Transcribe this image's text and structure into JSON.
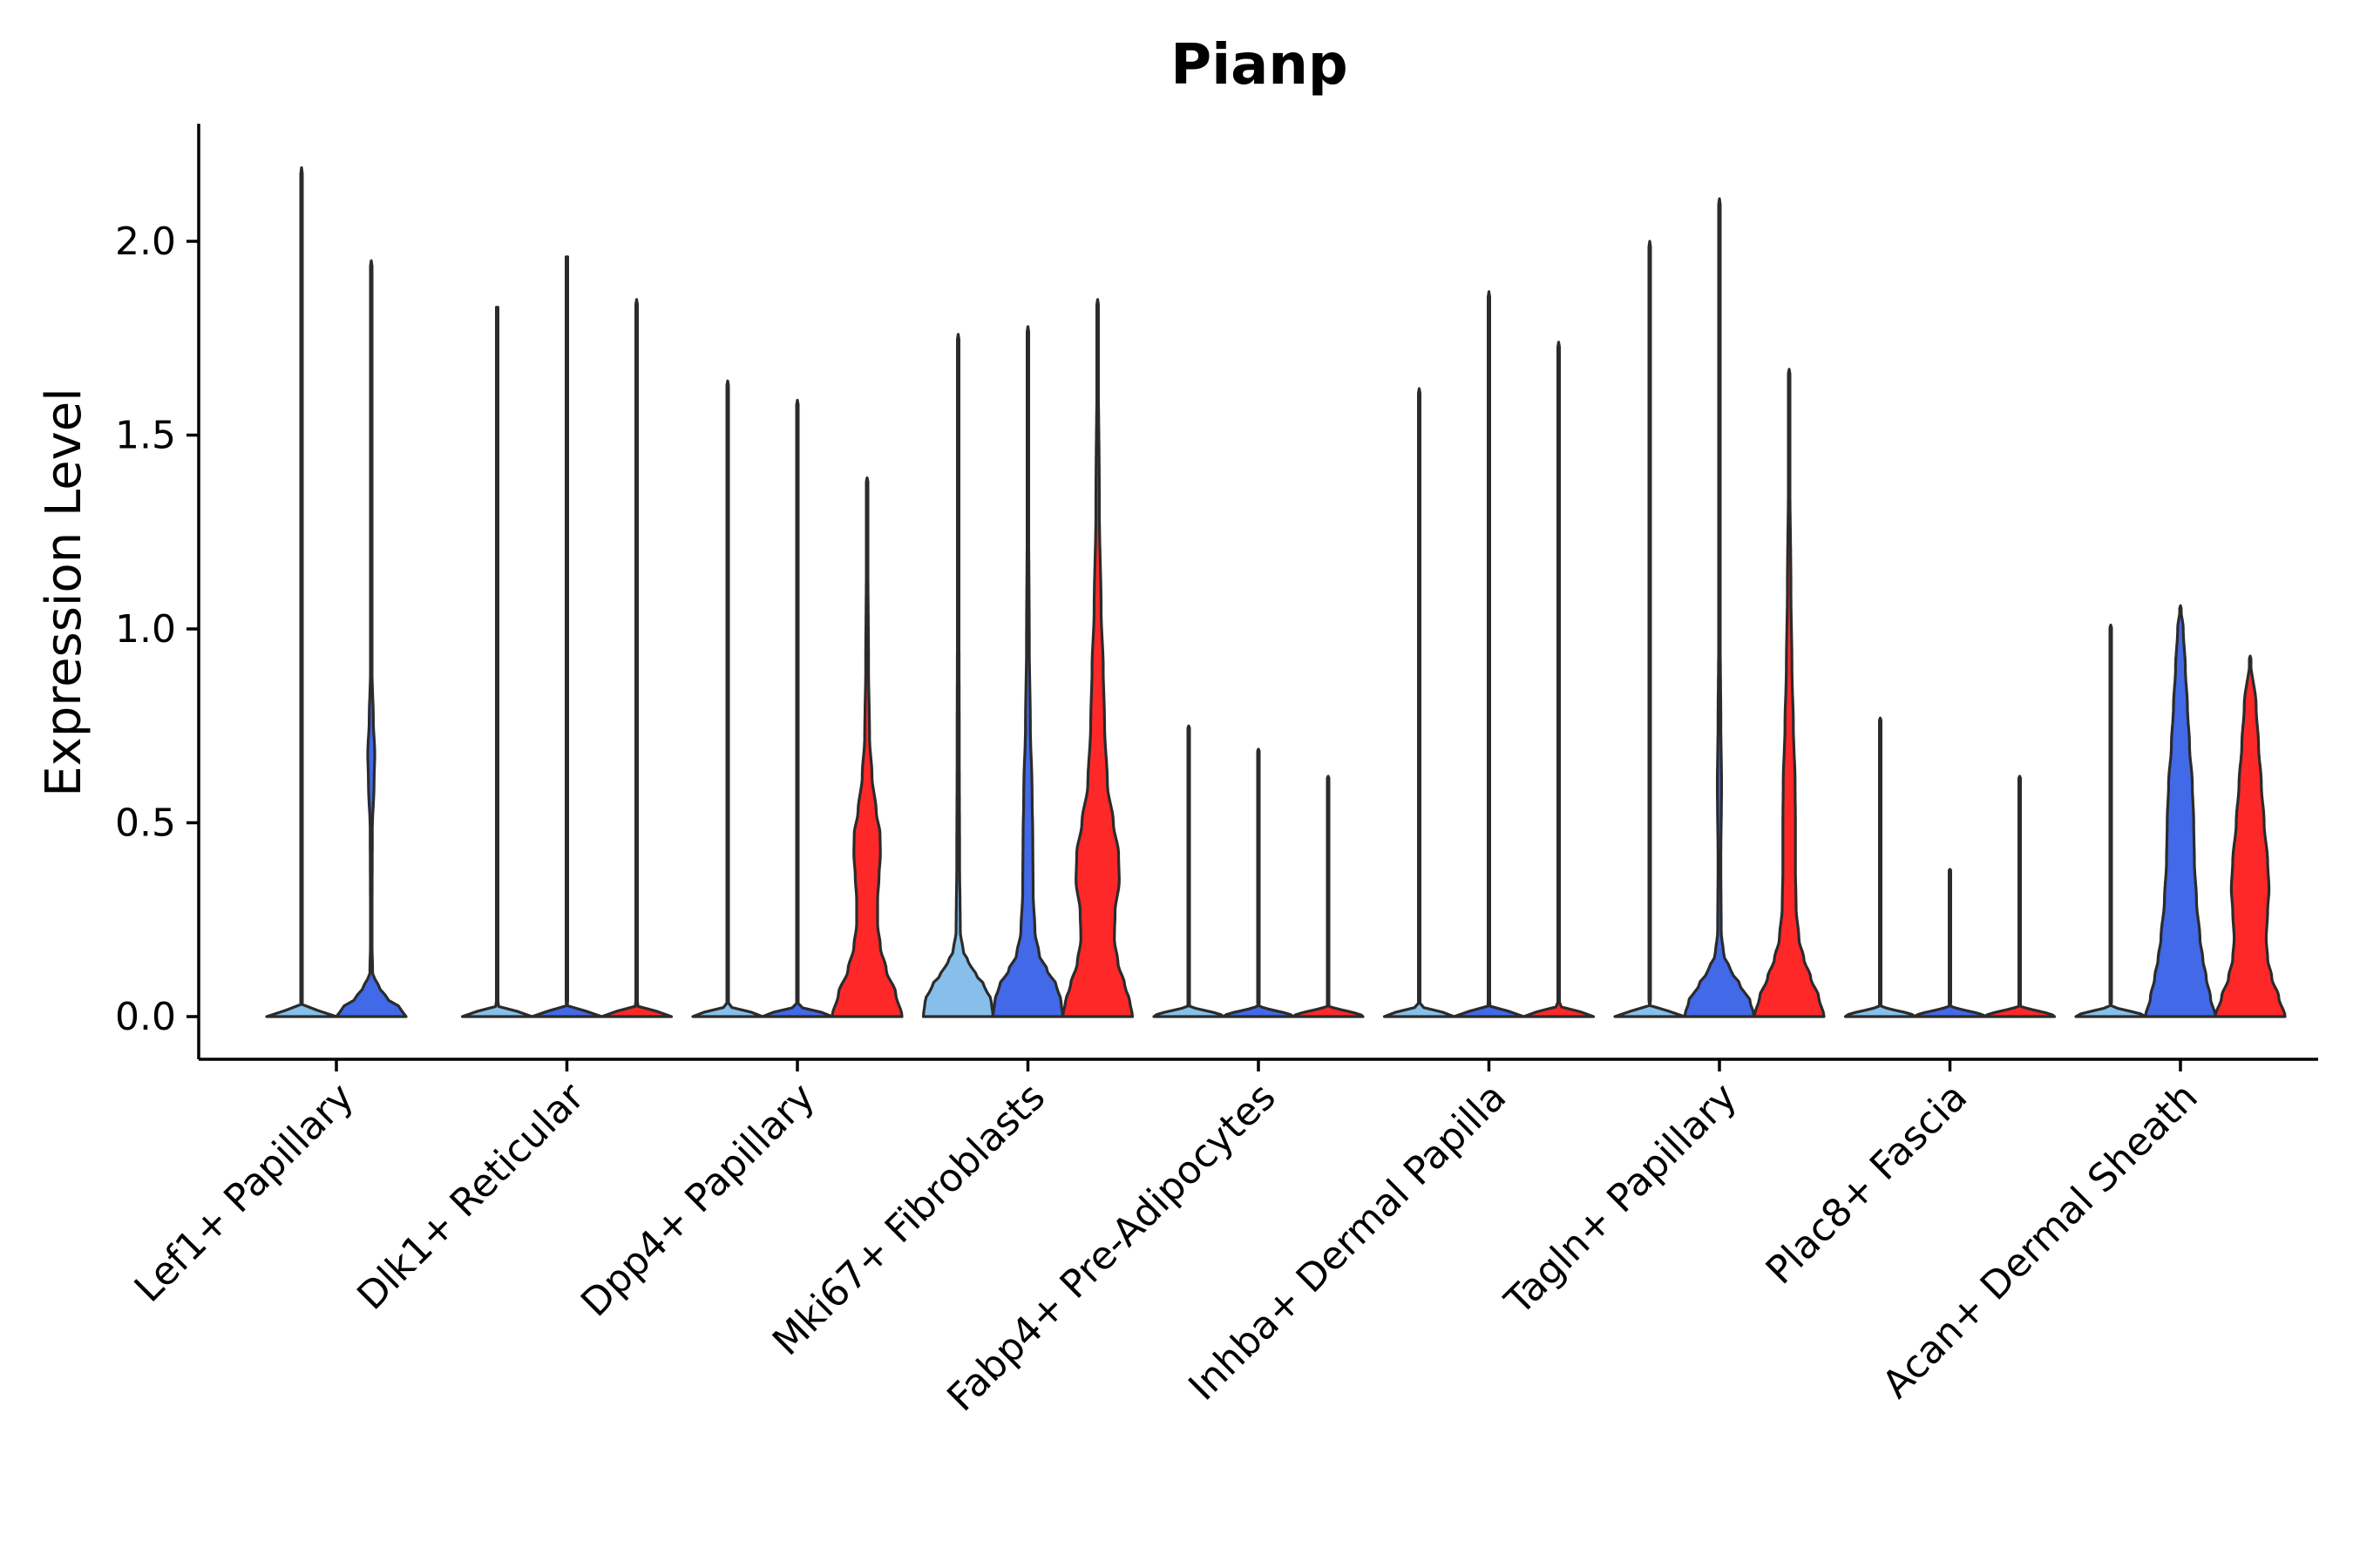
{
  "chart_data": {
    "type": "violin",
    "title": "Pianp",
    "xlabel": "",
    "ylabel": "Expression Level",
    "ylim": [
      -0.11,
      2.3
    ],
    "yticks": [
      0.0,
      0.5,
      1.0,
      1.5,
      2.0
    ],
    "ytick_labels": [
      "0.0",
      "0.5",
      "1.0",
      "1.5",
      "2.0"
    ],
    "grid": false,
    "legend": "none",
    "series_colors": {
      "group1": "#86bfe9",
      "group2": "#4169e8",
      "group3": "#ff2828"
    },
    "categories": [
      {
        "label": "Lef1+ Papillary",
        "violins": [
          {
            "group": "group1",
            "max": 2.19,
            "profile": [
              [
                0,
                1.0
              ],
              [
                0.03,
                0
              ]
            ]
          },
          {
            "group": "group2",
            "max": 1.95,
            "profile": [
              [
                0,
                1.0
              ],
              [
                0.02,
                0.85
              ],
              [
                0.05,
                0.42
              ],
              [
                0.08,
                0.2
              ],
              [
                0.11,
                0.04
              ],
              [
                0.2,
                0.02
              ],
              [
                0.48,
                0.03
              ],
              [
                0.6,
                0.08
              ],
              [
                0.68,
                0.1
              ],
              [
                0.76,
                0.06
              ],
              [
                0.9,
                0.02
              ],
              [
                1.4,
                0.01
              ],
              [
                1.95,
                0
              ]
            ]
          }
        ]
      },
      {
        "label": "Dlk1+ Reticular",
        "violins": [
          {
            "group": "group1",
            "max": 1.83,
            "profile": [
              [
                0,
                1.0
              ],
              [
                0.03,
                0
              ]
            ]
          },
          {
            "group": "group2",
            "max": 1.96,
            "profile": [
              [
                0,
                1.0
              ],
              [
                0.03,
                0
              ]
            ]
          },
          {
            "group": "group3",
            "max": 1.85,
            "profile": [
              [
                0,
                1.0
              ],
              [
                0.03,
                0
              ]
            ]
          }
        ]
      },
      {
        "label": "Dpp4+ Papillary",
        "violins": [
          {
            "group": "group1",
            "max": 1.64,
            "profile": [
              [
                0,
                1.0
              ],
              [
                0.03,
                0
              ]
            ]
          },
          {
            "group": "group2",
            "max": 1.59,
            "profile": [
              [
                0,
                1.0
              ],
              [
                0.03,
                0
              ]
            ]
          },
          {
            "group": "group3",
            "max": 1.39,
            "profile": [
              [
                0,
                1.0
              ],
              [
                0.06,
                0.82
              ],
              [
                0.12,
                0.55
              ],
              [
                0.18,
                0.38
              ],
              [
                0.24,
                0.3
              ],
              [
                0.3,
                0.3
              ],
              [
                0.36,
                0.34
              ],
              [
                0.42,
                0.38
              ],
              [
                0.47,
                0.37
              ],
              [
                0.53,
                0.26
              ],
              [
                0.62,
                0.14
              ],
              [
                0.72,
                0.07
              ],
              [
                0.9,
                0.04
              ],
              [
                1.2,
                0.02
              ],
              [
                1.39,
                0
              ]
            ]
          }
        ]
      },
      {
        "label": "Mki67+ Fibroblasts",
        "violins": [
          {
            "group": "group1",
            "max": 1.76,
            "profile": [
              [
                0,
                1.0
              ],
              [
                0.04,
                0.95
              ],
              [
                0.08,
                0.75
              ],
              [
                0.11,
                0.5
              ],
              [
                0.14,
                0.3
              ],
              [
                0.17,
                0.14
              ],
              [
                0.22,
                0.06
              ],
              [
                0.4,
                0.04
              ],
              [
                0.7,
                0.03
              ],
              [
                1.1,
                0.02
              ],
              [
                1.76,
                0
              ]
            ]
          },
          {
            "group": "group2",
            "max": 1.78,
            "profile": [
              [
                0,
                1.0
              ],
              [
                0.04,
                0.95
              ],
              [
                0.08,
                0.82
              ],
              [
                0.12,
                0.55
              ],
              [
                0.16,
                0.32
              ],
              [
                0.22,
                0.2
              ],
              [
                0.32,
                0.15
              ],
              [
                0.45,
                0.14
              ],
              [
                0.58,
                0.12
              ],
              [
                0.75,
                0.07
              ],
              [
                0.95,
                0.04
              ],
              [
                1.3,
                0.02
              ],
              [
                1.78,
                0
              ]
            ]
          },
          {
            "group": "group3",
            "max": 1.85,
            "profile": [
              [
                0,
                1.0
              ],
              [
                0.04,
                0.92
              ],
              [
                0.08,
                0.78
              ],
              [
                0.14,
                0.58
              ],
              [
                0.2,
                0.48
              ],
              [
                0.27,
                0.5
              ],
              [
                0.35,
                0.62
              ],
              [
                0.42,
                0.6
              ],
              [
                0.5,
                0.45
              ],
              [
                0.6,
                0.28
              ],
              [
                0.75,
                0.2
              ],
              [
                0.9,
                0.16
              ],
              [
                1.05,
                0.1
              ],
              [
                1.3,
                0.05
              ],
              [
                1.85,
                0
              ]
            ]
          }
        ]
      },
      {
        "label": "Fabp4+ Pre-Adipocytes",
        "violins": [
          {
            "group": "group1",
            "max": 0.75,
            "profile": [
              [
                0,
                1.0
              ],
              [
                0.03,
                0
              ]
            ]
          },
          {
            "group": "group2",
            "max": 0.69,
            "profile": [
              [
                0,
                1.0
              ],
              [
                0.03,
                0
              ]
            ]
          },
          {
            "group": "group3",
            "max": 0.62,
            "profile": [
              [
                0,
                1.0
              ],
              [
                0.03,
                0
              ]
            ]
          }
        ]
      },
      {
        "label": "Inhba+ Dermal Papilla",
        "violins": [
          {
            "group": "group1",
            "max": 1.62,
            "profile": [
              [
                0,
                1.0
              ],
              [
                0.03,
                0
              ]
            ]
          },
          {
            "group": "group2",
            "max": 1.87,
            "profile": [
              [
                0,
                1.0
              ],
              [
                0.03,
                0
              ]
            ]
          },
          {
            "group": "group3",
            "max": 1.74,
            "profile": [
              [
                0,
                1.0
              ],
              [
                0.03,
                0
              ]
            ]
          }
        ]
      },
      {
        "label": "Tagln+ Papillary",
        "violins": [
          {
            "group": "group1",
            "max": 2.0,
            "profile": [
              [
                0,
                1.0
              ],
              [
                0.03,
                0
              ]
            ]
          },
          {
            "group": "group2",
            "max": 2.11,
            "profile": [
              [
                0,
                1.0
              ],
              [
                0.04,
                0.88
              ],
              [
                0.08,
                0.6
              ],
              [
                0.12,
                0.32
              ],
              [
                0.16,
                0.12
              ],
              [
                0.22,
                0.05
              ],
              [
                0.4,
                0.04
              ],
              [
                0.6,
                0.06
              ],
              [
                0.75,
                0.04
              ],
              [
                1.0,
                0.02
              ],
              [
                1.5,
                0.01
              ],
              [
                2.11,
                0
              ]
            ]
          },
          {
            "group": "group3",
            "max": 1.67,
            "profile": [
              [
                0,
                1.0
              ],
              [
                0.05,
                0.85
              ],
              [
                0.1,
                0.62
              ],
              [
                0.15,
                0.42
              ],
              [
                0.2,
                0.28
              ],
              [
                0.28,
                0.2
              ],
              [
                0.38,
                0.18
              ],
              [
                0.5,
                0.18
              ],
              [
                0.6,
                0.17
              ],
              [
                0.75,
                0.12
              ],
              [
                0.9,
                0.08
              ],
              [
                1.1,
                0.05
              ],
              [
                1.4,
                0.02
              ],
              [
                1.67,
                0
              ]
            ]
          }
        ]
      },
      {
        "label": "Plac8+ Fascia",
        "violins": [
          {
            "group": "group1",
            "max": 0.77,
            "profile": [
              [
                0,
                1.0
              ],
              [
                0.03,
                0
              ]
            ]
          },
          {
            "group": "group2",
            "max": 0.38,
            "profile": [
              [
                0,
                1.0
              ],
              [
                0.03,
                0
              ]
            ]
          },
          {
            "group": "group3",
            "max": 0.62,
            "profile": [
              [
                0,
                1.0
              ],
              [
                0.03,
                0
              ]
            ]
          }
        ]
      },
      {
        "label": "Acan+ Dermal Sheath",
        "violins": [
          {
            "group": "group1",
            "max": 1.01,
            "profile": [
              [
                0,
                1.0
              ],
              [
                0.03,
                0
              ]
            ]
          },
          {
            "group": "group2",
            "max": 1.06,
            "profile": [
              [
                0,
                1.0
              ],
              [
                0.05,
                0.86
              ],
              [
                0.1,
                0.74
              ],
              [
                0.15,
                0.64
              ],
              [
                0.2,
                0.56
              ],
              [
                0.3,
                0.46
              ],
              [
                0.4,
                0.4
              ],
              [
                0.5,
                0.38
              ],
              [
                0.6,
                0.34
              ],
              [
                0.7,
                0.26
              ],
              [
                0.8,
                0.2
              ],
              [
                0.9,
                0.14
              ],
              [
                1.0,
                0.08
              ],
              [
                1.06,
                0
              ]
            ]
          },
          {
            "group": "group3",
            "max": 0.93,
            "profile": [
              [
                0,
                1.0
              ],
              [
                0.05,
                0.82
              ],
              [
                0.1,
                0.62
              ],
              [
                0.15,
                0.5
              ],
              [
                0.2,
                0.46
              ],
              [
                0.27,
                0.5
              ],
              [
                0.33,
                0.54
              ],
              [
                0.4,
                0.5
              ],
              [
                0.5,
                0.4
              ],
              [
                0.6,
                0.32
              ],
              [
                0.7,
                0.24
              ],
              [
                0.8,
                0.17
              ],
              [
                0.93,
                0
              ]
            ]
          }
        ]
      }
    ]
  }
}
